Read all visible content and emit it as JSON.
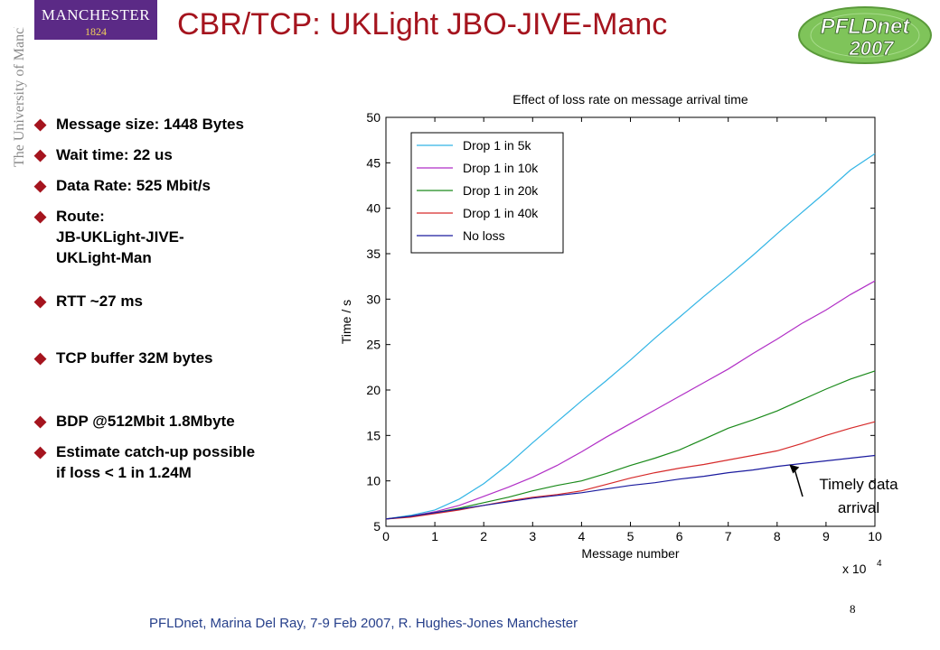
{
  "slide": {
    "title": "CBR/TCP: UKLight JBO-JIVE-Manc",
    "logo_left": {
      "line1": "MANCHESTER",
      "line2": "1824",
      "vertical": "The University of Manchester"
    },
    "logo_right": {
      "line1": "PFLDnet",
      "line2": "2007"
    },
    "bullets": [
      "Message size: 1448 Bytes",
      "Wait time: 22 us",
      "Data Rate: 525 Mbit/s",
      "Route:\nJB-UKLight-JIVE-\nUKLight-Man",
      "RTT ~27 ms",
      "TCP buffer 32M bytes",
      "BDP @512Mbit 1.8Mbyte",
      "Estimate catch-up possible\nif loss < 1 in 1.24M"
    ],
    "annotation": "Timely data\narrival",
    "footer": "PFLDnet, Marina Del Ray, 7-9 Feb 2007,  R. Hughes-Jones  Manchester",
    "page_number": "8",
    "colors": {
      "title": "#a5141e",
      "bullet_mark": "#a5141e",
      "footer": "#27408b"
    }
  },
  "chart_data": {
    "type": "line",
    "title": "Effect of loss rate on message arrival time",
    "xlabel": "Message number",
    "ylabel": "Time / s",
    "x_exponent_label": "x 10",
    "x_exponent": "4",
    "xlim": [
      0,
      10
    ],
    "ylim": [
      5,
      50
    ],
    "xticks": [
      0,
      1,
      2,
      3,
      4,
      5,
      6,
      7,
      8,
      9,
      10
    ],
    "yticks": [
      5,
      10,
      15,
      20,
      25,
      30,
      35,
      40,
      45,
      50
    ],
    "grid": false,
    "legend_position": "top-left",
    "x": [
      0,
      0.5,
      1,
      1.5,
      2,
      2.5,
      3,
      3.5,
      4,
      4.5,
      5,
      5.5,
      6,
      6.5,
      7,
      7.5,
      8,
      8.5,
      9,
      9.5,
      10
    ],
    "series": [
      {
        "name": "Drop 1 in 5k",
        "color": "#33b5e5",
        "values": [
          5.8,
          6.2,
          6.8,
          8.0,
          9.7,
          11.8,
          14.2,
          16.5,
          18.8,
          21.0,
          23.3,
          25.7,
          28.0,
          30.3,
          32.5,
          34.8,
          37.2,
          39.5,
          41.8,
          44.2,
          46.0
        ]
      },
      {
        "name": "Drop 1 in 10k",
        "color": "#b12fc6",
        "values": [
          5.8,
          6.1,
          6.6,
          7.3,
          8.3,
          9.3,
          10.4,
          11.7,
          13.2,
          14.8,
          16.3,
          17.8,
          19.3,
          20.8,
          22.3,
          24.0,
          25.6,
          27.3,
          28.8,
          30.5,
          32.0
        ]
      },
      {
        "name": "Drop 1 in 20k",
        "color": "#1a8a1a",
        "values": [
          5.8,
          6.1,
          6.5,
          7.0,
          7.6,
          8.2,
          8.9,
          9.5,
          10.0,
          10.8,
          11.7,
          12.5,
          13.4,
          14.6,
          15.8,
          16.7,
          17.7,
          18.9,
          20.1,
          21.2,
          22.1
        ]
      },
      {
        "name": "Drop 1 in 40k",
        "color": "#d62a2a",
        "values": [
          5.8,
          6.0,
          6.4,
          6.8,
          7.3,
          7.8,
          8.2,
          8.5,
          8.9,
          9.6,
          10.3,
          10.9,
          11.4,
          11.8,
          12.3,
          12.8,
          13.3,
          14.1,
          15.0,
          15.8,
          16.5
        ]
      },
      {
        "name": "No loss",
        "color": "#1a1a9e",
        "values": [
          5.8,
          6.1,
          6.5,
          6.9,
          7.3,
          7.7,
          8.1,
          8.4,
          8.7,
          9.1,
          9.5,
          9.8,
          10.2,
          10.5,
          10.9,
          11.2,
          11.6,
          11.9,
          12.2,
          12.5,
          12.8
        ]
      }
    ]
  }
}
